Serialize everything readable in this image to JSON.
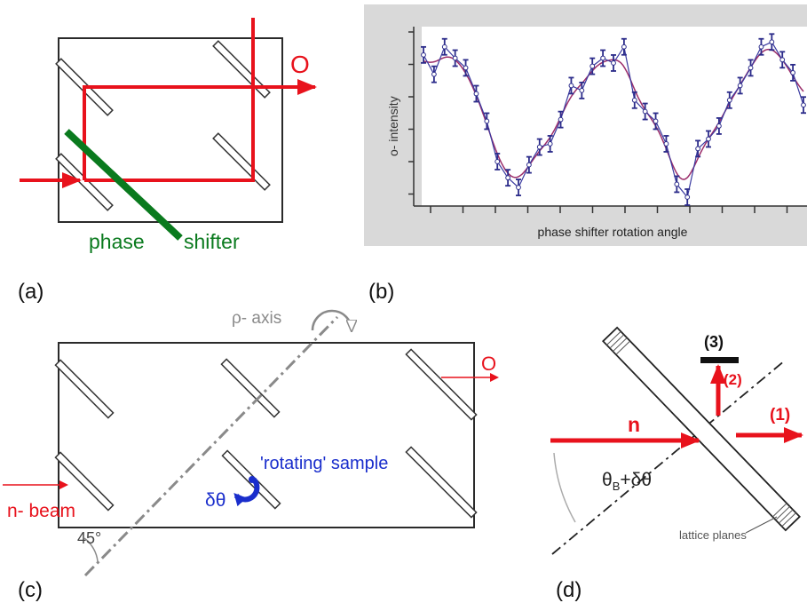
{
  "colors": {
    "beam": "#e8121c",
    "shifter": "#0a7a1e",
    "sample": "#1a2ecc",
    "frame": "#2a2a2a",
    "gray": "#8a8a8a",
    "plot_bg": "#d9d9d9",
    "curve_fit": "#9b2d6a",
    "curve_data": "#3a3aa0"
  },
  "panel_a": {
    "label": "(a)",
    "out_label": "O",
    "phase_label": "phase",
    "shifter_label": "shifter"
  },
  "panel_b": {
    "label": "(b)",
    "ylabel": "o- intensity",
    "xlabel": "phase shifter rotation angle"
  },
  "panel_c": {
    "label": "(c)",
    "axis_label": "ρ- axis",
    "out_label": "O",
    "beam_label": "n- beam",
    "sample_label": "'rotating' sample",
    "dtheta_label": "δθ",
    "angle_label": "45°"
  },
  "panel_d": {
    "label": "(d)",
    "beam_label": "n",
    "angle_label_main": "θ",
    "angle_label_sub": "B",
    "angle_label_rest": "+δθ",
    "out1_label": "(1)",
    "out2_label": "(2)",
    "out3_label": "(3)",
    "planes_label": "lattice planes"
  },
  "chart_data": {
    "type": "line",
    "title": "",
    "xlabel": "phase shifter rotation angle",
    "ylabel": "o- intensity",
    "x": [
      0,
      1,
      2,
      3,
      4,
      5,
      6,
      7,
      8,
      9,
      10,
      11,
      12,
      13,
      14,
      15,
      16,
      17,
      18,
      19,
      20,
      21,
      22,
      23,
      24,
      25,
      26,
      27,
      28,
      29,
      30,
      31,
      32,
      33,
      34,
      35,
      36
    ],
    "series": [
      {
        "values": [
          0.88,
          0.76,
          0.93,
          0.86,
          0.8,
          0.64,
          0.47,
          0.22,
          0.12,
          0.06,
          0.2,
          0.31,
          0.33,
          0.48,
          0.69,
          0.66,
          0.81,
          0.86,
          0.83,
          0.93,
          0.6,
          0.53,
          0.47,
          0.33,
          0.08,
          0.0,
          0.3,
          0.36,
          0.44,
          0.6,
          0.69,
          0.8,
          0.93,
          0.96,
          0.85,
          0.77,
          0.57
        ]
      }
    ]
  }
}
